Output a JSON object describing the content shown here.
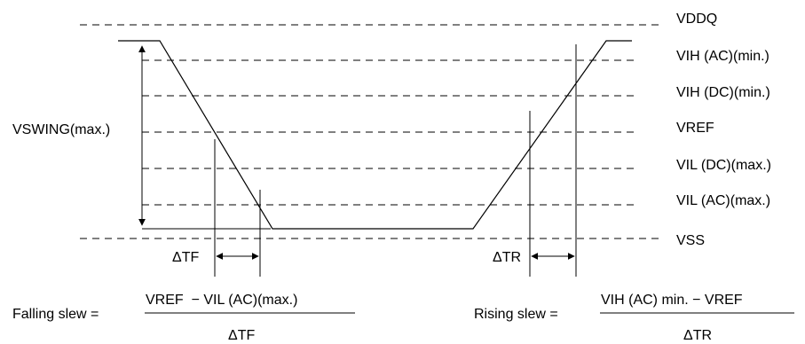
{
  "levels": {
    "vddq": "VDDQ",
    "vih_ac": "VIH (AC)(min.)",
    "vih_dc": "VIH (DC)(min.)",
    "vref": "VREF",
    "vil_dc": "VIL (DC)(max.)",
    "vil_ac": "VIL (AC)(max.)",
    "vss": "VSS"
  },
  "swing_label": "VSWING(max.)",
  "delta_tf": "ΔTF",
  "delta_tr": "ΔTR",
  "falling": {
    "label": "Falling slew =",
    "numerator": "VREF  − VIL (AC)(max.)",
    "denominator": "ΔTF"
  },
  "rising": {
    "label": "Rising slew =",
    "numerator": "VIH (AC) min. − VREF",
    "denominator": "ΔTR"
  }
}
